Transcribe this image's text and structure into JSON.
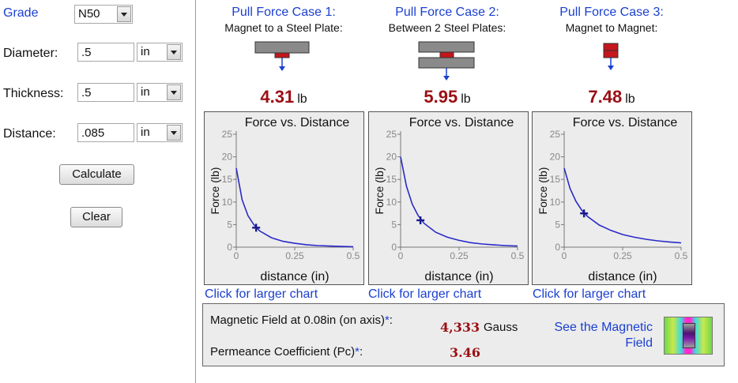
{
  "form": {
    "grade_label": "Grade",
    "grade_value": "N50",
    "diameter_label": "Diameter:",
    "diameter_value": ".5",
    "diameter_unit": "in",
    "thickness_label": "Thickness:",
    "thickness_value": ".5",
    "thickness_unit": "in",
    "distance_label": "Distance:",
    "distance_value": ".085",
    "distance_unit": "in",
    "calculate_label": "Calculate",
    "clear_label": "Clear"
  },
  "cases": [
    {
      "title": "Pull Force Case 1:",
      "subtitle": "Magnet to a Steel Plate:",
      "force_value": "4.31",
      "force_unit": "lb",
      "link": "Click for larger chart"
    },
    {
      "title": "Pull Force Case 2:",
      "subtitle": "Between 2 Steel Plates:",
      "force_value": "5.95",
      "force_unit": "lb",
      "link": "Click for larger chart"
    },
    {
      "title": "Pull Force Case 3:",
      "subtitle": "Magnet to Magnet:",
      "force_value": "7.48",
      "force_unit": "lb",
      "link": "Click for larger chart"
    }
  ],
  "info": {
    "field_label": "Magnetic Field at 0.08in (on axis)",
    "field_star": "*",
    "field_colon": ":",
    "field_value": "4,333",
    "field_unit": "Gauss",
    "pc_label": "Permeance Coefficient (Pc)",
    "pc_star": "*",
    "pc_colon": ":",
    "pc_value": "3.46",
    "see_field_link": "See the Magnetic Field"
  },
  "colors": {
    "accent_link": "#1a3fd0",
    "value_red": "#9b0e14",
    "curve": "#2a2ac8"
  },
  "chart_data": [
    {
      "type": "line",
      "title": "Force vs. Distance",
      "xlabel": "distance (in)",
      "ylabel": "Force (lb)",
      "xlim": [
        0,
        0.5
      ],
      "ylim": [
        0,
        25
      ],
      "xticks": [
        "0",
        "0.25",
        "0.5"
      ],
      "yticks": [
        "0",
        "5",
        "10",
        "15",
        "20",
        "25"
      ],
      "x": [
        0,
        0.025,
        0.05,
        0.075,
        0.1,
        0.15,
        0.2,
        0.25,
        0.3,
        0.35,
        0.4,
        0.45,
        0.5
      ],
      "series": [
        {
          "values": [
            17.5,
            10.5,
            7.0,
            5.0,
            3.6,
            2.1,
            1.3,
            0.85,
            0.55,
            0.35,
            0.25,
            0.15,
            0.1
          ]
        }
      ],
      "marker": {
        "x": 0.085,
        "y": 4.31
      }
    },
    {
      "type": "line",
      "title": "Force vs. Distance",
      "xlabel": "distance (in)",
      "ylabel": "Force (lb)",
      "xlim": [
        0,
        0.5
      ],
      "ylim": [
        0,
        25
      ],
      "xticks": [
        "0",
        "0.25",
        "0.5"
      ],
      "yticks": [
        "0",
        "5",
        "10",
        "15",
        "20",
        "25"
      ],
      "x": [
        0,
        0.025,
        0.05,
        0.075,
        0.1,
        0.15,
        0.2,
        0.25,
        0.3,
        0.35,
        0.4,
        0.45,
        0.5
      ],
      "series": [
        {
          "values": [
            20,
            13.5,
            9.5,
            7.0,
            5.3,
            3.3,
            2.2,
            1.5,
            1.0,
            0.7,
            0.5,
            0.35,
            0.25
          ]
        }
      ],
      "marker": {
        "x": 0.085,
        "y": 5.95
      }
    },
    {
      "type": "line",
      "title": "Force vs. Distance",
      "xlabel": "distance (in)",
      "ylabel": "Force (lb)",
      "xlim": [
        0,
        0.5
      ],
      "ylim": [
        0,
        25
      ],
      "xticks": [
        "0",
        "0.25",
        "0.5"
      ],
      "yticks": [
        "0",
        "5",
        "10",
        "15",
        "20",
        "25"
      ],
      "x": [
        0,
        0.025,
        0.05,
        0.075,
        0.1,
        0.15,
        0.2,
        0.25,
        0.3,
        0.35,
        0.4,
        0.45,
        0.5
      ],
      "series": [
        {
          "values": [
            17.5,
            13.0,
            10.2,
            8.2,
            6.8,
            4.9,
            3.7,
            2.8,
            2.2,
            1.75,
            1.4,
            1.15,
            0.95
          ]
        }
      ],
      "marker": {
        "x": 0.085,
        "y": 7.48
      }
    }
  ]
}
